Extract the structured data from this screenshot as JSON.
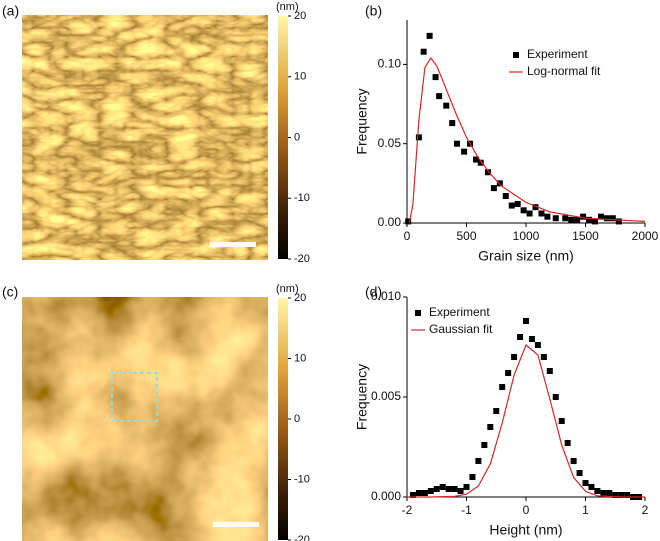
{
  "images": [
    {
      "label": "(a)",
      "colorbar": {
        "label": "(nm)",
        "lim": [
          -20,
          20
        ],
        "ticks": [
          20,
          10,
          0,
          -10,
          -20
        ]
      }
    },
    {
      "label": "(c)",
      "colorbar": {
        "label": "(nm)",
        "lim": [
          -20,
          20
        ],
        "ticks": [
          20,
          10,
          0,
          -10,
          -20
        ]
      }
    }
  ],
  "chart_data": [
    {
      "type": "scatter",
      "label": "(b)",
      "xlabel": "Grain size (nm)",
      "ylabel": "Frequency",
      "xlim": [
        0,
        2000
      ],
      "xticks": [
        0,
        500,
        1000,
        1500,
        2000
      ],
      "ylim": [
        0,
        0.128
      ],
      "yticks": [
        {
          "value": 0,
          "label": "0.00"
        },
        {
          "value": 0.05,
          "label": "0.05"
        },
        {
          "value": 0.1,
          "label": "0.10"
        }
      ],
      "legend": "upper right",
      "series": [
        {
          "name": "Experiment",
          "color": "#000000",
          "marker": "square",
          "x": [
            10,
            100,
            140,
            190,
            240,
            270,
            330,
            380,
            420,
            480,
            530,
            580,
            620,
            680,
            730,
            780,
            830,
            880,
            930,
            980,
            1030,
            1080,
            1130,
            1180,
            1250,
            1330,
            1380,
            1430,
            1480,
            1530,
            1580,
            1630,
            1680,
            1730,
            1780
          ],
          "values": [
            0.001,
            0.054,
            0.108,
            0.118,
            0.092,
            0.08,
            0.074,
            0.063,
            0.05,
            0.045,
            0.05,
            0.04,
            0.038,
            0.032,
            0.022,
            0.025,
            0.017,
            0.011,
            0.012,
            0.008,
            0.006,
            0.01,
            0.006,
            0.004,
            0.003,
            0.003,
            0.002,
            0.002,
            0.004,
            0.002,
            0.001,
            0.004,
            0.003,
            0.003,
            0.001
          ]
        },
        {
          "name": "Log-normal fit",
          "color": "#d62728",
          "marker": "line",
          "x": [
            20,
            50,
            100,
            150,
            200,
            250,
            300,
            400,
            500,
            600,
            700,
            800,
            1000,
            1200,
            1500,
            2000
          ],
          "values": [
            0.0,
            0.012,
            0.065,
            0.098,
            0.104,
            0.099,
            0.09,
            0.071,
            0.054,
            0.041,
            0.031,
            0.023,
            0.013,
            0.007,
            0.003,
            0.001
          ]
        }
      ]
    },
    {
      "type": "scatter",
      "label": "(d)",
      "xlabel": "Height (nm)",
      "ylabel": "Frequency",
      "xlim": [
        -2,
        2
      ],
      "xticks": [
        -2,
        -1,
        0,
        1,
        2
      ],
      "ylim": [
        0,
        0.01
      ],
      "yticks": [
        {
          "value": 0,
          "label": "0.000"
        },
        {
          "value": 0.005,
          "label": "0.005"
        },
        {
          "value": 0.01,
          "label": "0.010"
        }
      ],
      "legend": "upper left",
      "series": [
        {
          "name": "Experiment",
          "color": "#000000",
          "marker": "square",
          "x": [
            -1.9,
            -1.8,
            -1.7,
            -1.6,
            -1.5,
            -1.4,
            -1.3,
            -1.2,
            -1.1,
            -1.0,
            -0.9,
            -0.8,
            -0.7,
            -0.6,
            -0.5,
            -0.4,
            -0.3,
            -0.2,
            -0.1,
            0.0,
            0.1,
            0.2,
            0.3,
            0.4,
            0.5,
            0.6,
            0.7,
            0.8,
            0.9,
            1.0,
            1.1,
            1.2,
            1.3,
            1.4,
            1.5,
            1.6,
            1.7,
            1.8,
            1.9
          ],
          "values": [
            0.0001,
            0.0002,
            0.0002,
            0.0003,
            0.0004,
            0.0005,
            0.0004,
            0.0004,
            0.0003,
            0.0005,
            0.001,
            0.0018,
            0.0026,
            0.0035,
            0.0043,
            0.0055,
            0.0062,
            0.007,
            0.008,
            0.0088,
            0.0079,
            0.0076,
            0.007,
            0.0063,
            0.005,
            0.0038,
            0.0027,
            0.0018,
            0.0012,
            0.0007,
            0.0005,
            0.0003,
            0.0002,
            0.0002,
            0.0001,
            0.0001,
            0.0001,
            0.0,
            0.0
          ]
        },
        {
          "name": "Gaussian fit",
          "color": "#d62728",
          "marker": "line",
          "x": [
            -2,
            -1.6,
            -1.2,
            -1.0,
            -0.8,
            -0.6,
            -0.4,
            -0.2,
            0.0,
            0.2,
            0.4,
            0.6,
            0.8,
            1.0,
            1.2,
            1.6,
            2
          ],
          "values": [
            0,
            0,
            3e-05,
            0.00014,
            0.00055,
            0.00165,
            0.0037,
            0.0061,
            0.0076,
            0.0071,
            0.0049,
            0.0026,
            0.00098,
            0.00028,
            6e-05,
            0,
            0
          ]
        }
      ]
    }
  ]
}
